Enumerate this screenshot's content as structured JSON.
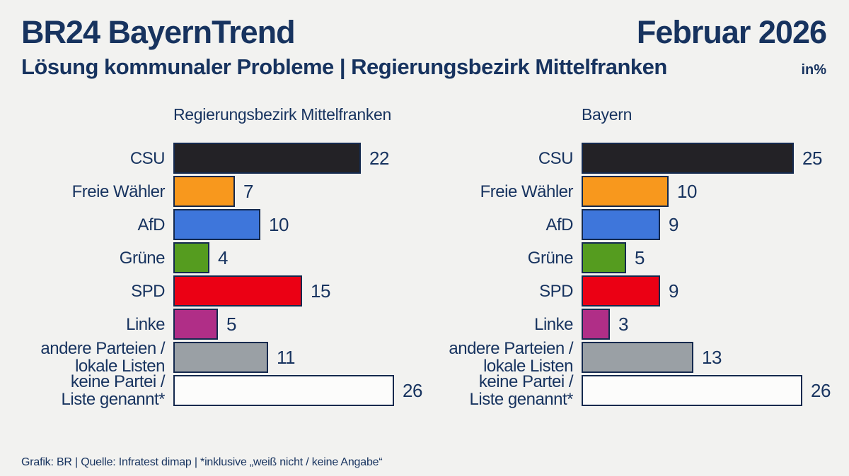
{
  "header": {
    "title": "BR24 BayernTrend",
    "date": "Februar 2026",
    "subtitle": "Lösung kommunaler Probleme | Regierungsbezirk Mittelfranken",
    "unit": "in%"
  },
  "colors": {
    "background": "#F2F2F0",
    "text_navy": "#17335F",
    "bar_border": "#14294E"
  },
  "chart_data": {
    "type": "bar",
    "orientation": "horizontal",
    "unit": "percent",
    "xlim": [
      0,
      26
    ],
    "grid": false,
    "categories": [
      {
        "id": "csu",
        "lines": [
          "CSU"
        ],
        "color": "#232226"
      },
      {
        "id": "freie-waehler",
        "lines": [
          "Freie Wähler"
        ],
        "color": "#F8981D"
      },
      {
        "id": "afd",
        "lines": [
          "AfD"
        ],
        "color": "#3E76DB"
      },
      {
        "id": "gruene",
        "lines": [
          "Grüne"
        ],
        "color": "#559C1F"
      },
      {
        "id": "spd",
        "lines": [
          "SPD"
        ],
        "color": "#EB0014"
      },
      {
        "id": "linke",
        "lines": [
          "Linke"
        ],
        "color": "#B02E87"
      },
      {
        "id": "andere",
        "lines": [
          "andere Parteien /",
          "lokale Listen"
        ],
        "color": "#9AA0A5"
      },
      {
        "id": "keine",
        "lines": [
          "keine Partei /",
          "Liste genannt*"
        ],
        "color": "#FCFCFB"
      }
    ],
    "series": [
      {
        "name": "Regierungsbezirk Mittelfranken",
        "values": [
          22,
          7,
          10,
          4,
          15,
          5,
          11,
          26
        ]
      },
      {
        "name": "Bayern",
        "values": [
          25,
          10,
          9,
          5,
          9,
          3,
          13,
          26
        ]
      }
    ]
  },
  "footer": {
    "credit": "Grafik: BR | Quelle: Infratest dimap | *inklusive „weiß nicht / keine Angabe“"
  }
}
